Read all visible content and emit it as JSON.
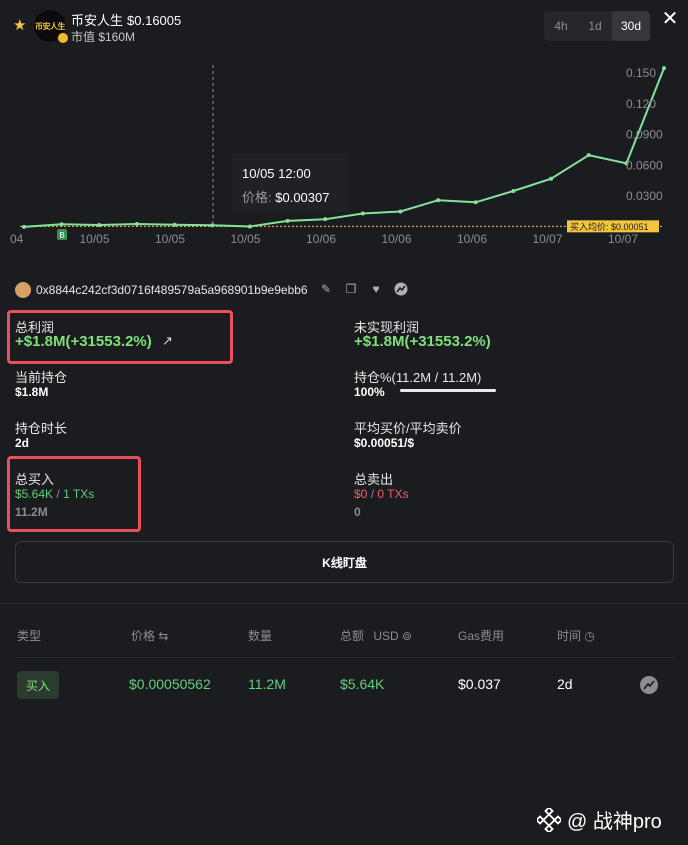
{
  "header": {
    "token_name": "币安人生",
    "token_price": "$0.16005",
    "logo_text": "币安人生",
    "market_cap": "市值 $160M",
    "timeframes": [
      "4h",
      "1d",
      "30d"
    ],
    "active_timeframe": "30d"
  },
  "chart_data": {
    "type": "line",
    "series": [
      {
        "values": [
          0.0,
          0.0025,
          0.0018,
          0.0028,
          0.002,
          0.0015,
          0.0003,
          0.0058,
          0.0075,
          0.013,
          0.015,
          0.026,
          0.024,
          0.035,
          0.047,
          0.07,
          0.062,
          0.155
        ]
      }
    ],
    "x_tick_labels": [
      "04",
      "10/05",
      "10/05",
      "10/05",
      "10/06",
      "10/06",
      "10/06",
      "10/07",
      "10/07"
    ],
    "y_tick_labels": [
      "0.0300",
      "0.0600",
      "0.0900",
      "0.120",
      "0.150"
    ],
    "y_ticks": [
      0.03,
      0.06,
      0.09,
      0.12,
      0.15
    ],
    "ylim": [
      -0.006,
      0.16
    ],
    "line_color": "#86e29a",
    "avg_buy_value": 0.00051,
    "avg_buy_label": "买入均价: $0.00051",
    "tooltip": {
      "time": "10/05 12:00",
      "price_label": "价格:",
      "price_value": "$0.00307"
    }
  },
  "wallet": {
    "address": "0x8844c242cf3d0716f489579a5a968901b9e9ebb6"
  },
  "stats": {
    "total_profit_label": "总利润",
    "total_profit_value": "+$1.8M(+31553.2%)",
    "unrealized_label": "未实现利润",
    "unrealized_value": "+$1.8M(+31553.2%)",
    "holding_label": "当前持仓",
    "holding_value": "$1.8M",
    "holding_pct_label": "持仓%(11.2M / 11.2M)",
    "holding_pct_value": "100%",
    "holding_pct_fraction": 1.0,
    "duration_label": "持仓时长",
    "duration_value": "2d",
    "avg_price_label": "平均买价/平均卖价",
    "avg_price_value": "$0.00051/$",
    "total_buy_label": "总买入",
    "total_buy_usd": "$5.64K",
    "total_buy_sep": "/",
    "total_buy_txs": "1 TXs",
    "total_buy_amount": "11.2M",
    "total_sell_label": "总卖出",
    "total_sell_usd": "$0",
    "total_sell_sep": "/",
    "total_sell_txs": "0 TXs",
    "total_sell_amount": "0"
  },
  "kline_button": "K线盯盘",
  "table": {
    "headers": {
      "type": "类型",
      "price": "价格 ⇆",
      "amount": "数量",
      "total": "总额",
      "currency": "USD",
      "gas": "Gas费用",
      "time": "时间"
    },
    "rows": [
      {
        "type": "买入",
        "price": "$0.00050562",
        "amount": "11.2M",
        "total": "$5.64K",
        "gas": "$0.037",
        "time": "2d"
      }
    ]
  },
  "watermark": {
    "text": "@ 战神pro"
  },
  "colors": {
    "background": "#1b1c1f",
    "green": "#5fcf7b",
    "red": "#f05f66",
    "highlight": "#e8505b",
    "avg_tag": "#f3c53b"
  }
}
